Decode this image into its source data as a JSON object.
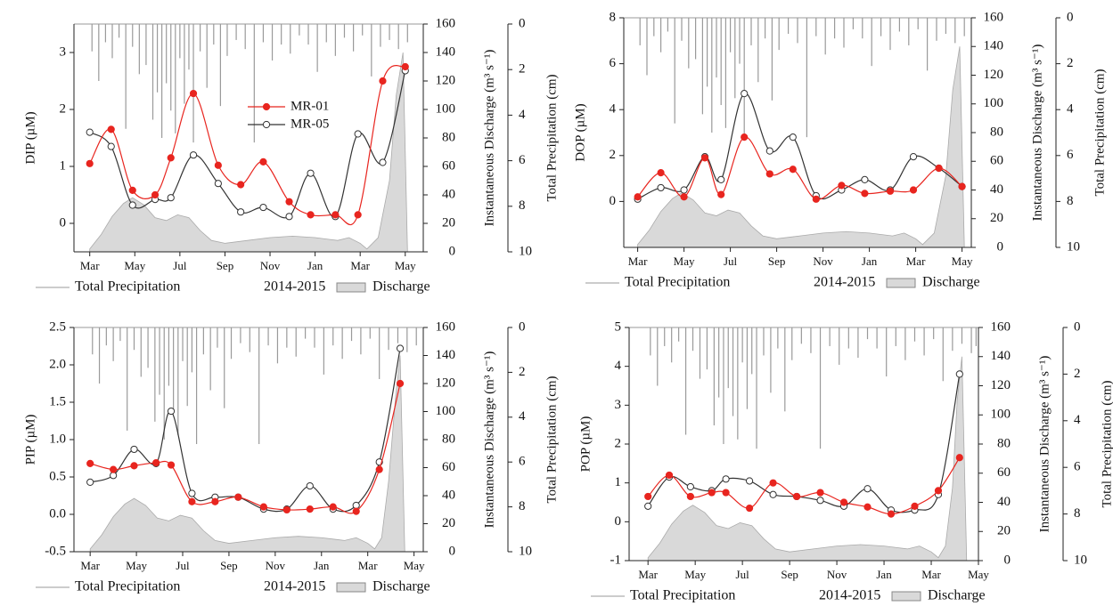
{
  "chart_data": [
    {
      "type": "line",
      "ylabel": "DIP (µM)",
      "y2label": "Instantaneous Discharge (m³ s⁻¹)",
      "y3label": "Total Precipitation (cm)",
      "legend": true,
      "x": [
        0,
        0.95,
        1.9,
        2.9,
        3.6,
        4.6,
        5.7,
        6.7,
        7.7,
        8.85,
        9.8,
        10.9,
        11.9,
        13,
        14
      ],
      "series": [
        {
          "name": "MR-01",
          "color": "#e8251f",
          "values": [
            1.05,
            1.65,
            0.58,
            0.5,
            1.15,
            2.28,
            1.02,
            0.68,
            1.08,
            0.38,
            0.15,
            0.15,
            0.15,
            2.5,
            2.75
          ]
        },
        {
          "name": "MR-05",
          "color": "#333333",
          "values": [
            1.6,
            1.35,
            0.32,
            0.42,
            0.45,
            1.2,
            0.7,
            0.2,
            0.28,
            0.12,
            0.88,
            0.12,
            1.57,
            1.07,
            2.68
          ]
        }
      ],
      "xlim": [
        -0.7,
        14.8
      ],
      "xticks": [
        {
          "value": 0,
          "label": "Mar"
        },
        {
          "value": 2,
          "label": "May"
        },
        {
          "value": 4,
          "label": "Jul"
        },
        {
          "value": 6,
          "label": "Sep"
        },
        {
          "value": 8,
          "label": "Nov"
        },
        {
          "value": 10,
          "label": "Jan"
        },
        {
          "value": 12,
          "label": "Mar"
        },
        {
          "value": 14,
          "label": "May"
        }
      ],
      "ylim": [
        -0.5,
        3.5
      ],
      "yticks": [
        0,
        1,
        2,
        3
      ],
      "y2lim": [
        0,
        160
      ],
      "y2ticks": [
        0,
        20,
        40,
        60,
        80,
        100,
        120,
        140,
        160
      ],
      "y3lim": [
        10,
        0
      ],
      "y3ticks": [
        0,
        2,
        4,
        6,
        8,
        10
      ],
      "discharge": {
        "name": "Discharge",
        "color": "#d9d9d9",
        "x": [
          0,
          0.5,
          1,
          1.5,
          1.9,
          2.4,
          2.9,
          3.4,
          3.9,
          4.4,
          4.9,
          5.4,
          6,
          7,
          8,
          9,
          10,
          10.5,
          11,
          11.5,
          12,
          12.3,
          12.8,
          13.3,
          13.6,
          13.9,
          14.1
        ],
        "values": [
          2,
          12,
          25,
          34,
          38,
          33,
          24,
          22,
          26,
          24,
          15,
          8,
          6,
          8,
          10,
          11,
          10,
          9,
          8,
          10,
          6,
          2,
          10,
          50,
          110,
          140,
          0
        ]
      },
      "precipitation": {
        "name": "Total Precipitation",
        "period": "2014-2015",
        "color": "#9a9a9a",
        "x": [
          0.1,
          0.4,
          0.7,
          1.0,
          1.3,
          1.6,
          1.9,
          2.2,
          2.5,
          2.8,
          3.0,
          3.2,
          3.4,
          3.6,
          3.8,
          4.0,
          4.2,
          4.4,
          4.6,
          4.9,
          5.2,
          5.5,
          5.8,
          6.1,
          6.5,
          6.9,
          7.3,
          7.7,
          8.1,
          8.5,
          8.9,
          9.3,
          9.7,
          10.1,
          10.5,
          10.9,
          11.3,
          11.7,
          12.1,
          12.5,
          12.9,
          13.3,
          13.7,
          14.1
        ],
        "values": [
          1.2,
          2.5,
          0.8,
          1.5,
          0.6,
          4.6,
          1.0,
          2.2,
          1.8,
          4.2,
          3.0,
          5.0,
          2.6,
          3.8,
          4.8,
          1.5,
          3.5,
          2.0,
          5.2,
          1.2,
          2.8,
          0.9,
          3.6,
          1.4,
          0.7,
          1.1,
          5.2,
          0.8,
          1.6,
          0.9,
          1.3,
          0.5,
          0.9,
          2.1,
          0.8,
          1.4,
          0.6,
          1.2,
          0.5,
          2.3,
          1.0,
          0.7,
          1.1,
          0.8
        ]
      }
    },
    {
      "type": "line",
      "ylabel": "DOP (µM)",
      "y2label": "Instantaneous Discharge (m³ s⁻¹)",
      "y3label": "Total Precipitation (cm)",
      "legend": false,
      "x": [
        0,
        1,
        2,
        2.9,
        3.6,
        4.6,
        5.7,
        6.7,
        7.7,
        8.8,
        9.8,
        10.9,
        11.9,
        13,
        14
      ],
      "series": [
        {
          "name": "MR-01",
          "color": "#e8251f",
          "values": [
            0.2,
            1.25,
            0.2,
            1.9,
            0.3,
            2.8,
            1.2,
            1.4,
            0.1,
            0.7,
            0.35,
            0.45,
            0.5,
            1.45,
            0.65
          ]
        },
        {
          "name": "MR-05",
          "color": "#333333",
          "values": [
            0.1,
            0.6,
            0.5,
            1.95,
            0.95,
            4.7,
            2.2,
            2.8,
            0.25,
            0.5,
            0.95,
            0.5,
            1.95,
            1.45,
            0.65
          ]
        }
      ],
      "xlim": [
        -0.6,
        14.4
      ],
      "xticks": [
        {
          "value": 0,
          "label": "Mar"
        },
        {
          "value": 2,
          "label": "May"
        },
        {
          "value": 4,
          "label": "Jul"
        },
        {
          "value": 6,
          "label": "Sep"
        },
        {
          "value": 8,
          "label": "Nov"
        },
        {
          "value": 10,
          "label": "Jan"
        },
        {
          "value": 12,
          "label": "Mar"
        },
        {
          "value": 14,
          "label": "May"
        }
      ],
      "ylim": [
        -2,
        8
      ],
      "yticks": [
        0,
        2,
        4,
        6,
        8
      ],
      "y2lim": [
        0,
        160
      ],
      "y2ticks": [
        0,
        20,
        40,
        60,
        80,
        100,
        120,
        140,
        160
      ],
      "y3lim": [
        10,
        0
      ],
      "y3ticks": [
        0,
        2,
        4,
        6,
        8,
        10
      ],
      "discharge": {
        "name": "Discharge",
        "color": "#d9d9d9",
        "x": [
          0,
          0.5,
          1,
          1.5,
          1.9,
          2.4,
          2.9,
          3.4,
          3.9,
          4.4,
          4.9,
          5.4,
          6,
          7,
          8,
          9,
          10,
          10.5,
          11,
          11.5,
          12,
          12.3,
          12.8,
          13.3,
          13.6,
          13.9,
          14.1
        ],
        "values": [
          2,
          12,
          25,
          34,
          38,
          33,
          24,
          22,
          26,
          24,
          15,
          8,
          6,
          8,
          10,
          11,
          10,
          9,
          8,
          10,
          6,
          2,
          10,
          50,
          110,
          140,
          0
        ]
      },
      "precipitation": {
        "name": "Total Precipitation",
        "period": "2014-2015",
        "color": "#9a9a9a",
        "x": [
          0.1,
          0.4,
          0.7,
          1.0,
          1.3,
          1.6,
          1.9,
          2.2,
          2.5,
          2.8,
          3.0,
          3.2,
          3.4,
          3.6,
          3.8,
          4.0,
          4.2,
          4.4,
          4.6,
          4.9,
          5.2,
          5.5,
          5.8,
          6.1,
          6.5,
          6.9,
          7.3,
          7.7,
          8.1,
          8.5,
          8.9,
          9.3,
          9.7,
          10.1,
          10.5,
          10.9,
          11.3,
          11.7,
          12.1,
          12.5,
          12.9,
          13.3,
          13.7,
          14.1
        ],
        "values": [
          1.2,
          2.5,
          0.8,
          1.5,
          0.6,
          4.6,
          1.0,
          2.2,
          1.8,
          4.2,
          3.0,
          5.0,
          2.6,
          3.8,
          4.8,
          1.5,
          3.5,
          2.0,
          5.2,
          1.2,
          2.8,
          0.9,
          3.6,
          1.4,
          0.7,
          1.1,
          5.2,
          0.8,
          1.6,
          0.9,
          1.3,
          0.5,
          0.9,
          2.1,
          0.8,
          1.4,
          0.6,
          1.2,
          0.5,
          2.3,
          1.0,
          0.7,
          1.1,
          0.8
        ]
      }
    },
    {
      "type": "line",
      "ylabel": "PIP (µM)",
      "y2label": "Instantaneous Discharge (m³ s⁻¹)",
      "y3label": "Total Precipitation (cm)",
      "legend": false,
      "x": [
        0,
        1,
        1.9,
        2.85,
        3.5,
        4.4,
        5.4,
        6.4,
        7.5,
        8.5,
        9.5,
        10.5,
        11.5,
        12.5,
        13.4
      ],
      "series": [
        {
          "name": "MR-01",
          "color": "#e8251f",
          "values": [
            0.68,
            0.6,
            0.65,
            0.69,
            0.66,
            0.17,
            0.17,
            0.23,
            0.1,
            0.06,
            0.07,
            0.1,
            0.04,
            0.6,
            1.75
          ]
        },
        {
          "name": "MR-05",
          "color": "#333333",
          "values": [
            0.43,
            0.52,
            0.87,
            0.68,
            1.38,
            0.28,
            0.23,
            0.23,
            0.07,
            0.07,
            0.38,
            0.07,
            0.12,
            0.7,
            2.22
          ]
        }
      ],
      "xlim": [
        -0.7,
        14.4
      ],
      "xticks": [
        {
          "value": 0,
          "label": "Mar"
        },
        {
          "value": 2,
          "label": "May"
        },
        {
          "value": 4,
          "label": "Jul"
        },
        {
          "value": 6,
          "label": "Sep"
        },
        {
          "value": 8,
          "label": "Nov"
        },
        {
          "value": 10,
          "label": "Jan"
        },
        {
          "value": 12,
          "label": "Mar"
        },
        {
          "value": 14,
          "label": "May"
        }
      ],
      "ylim": [
        -0.5,
        2.5
      ],
      "yticks": [
        -0.5,
        {
          "value": 0,
          "label": "0.0"
        },
        0.5,
        {
          "value": 1,
          "label": "1.0"
        },
        1.5,
        {
          "value": 2,
          "label": "2.0"
        },
        2.5
      ],
      "y2lim": [
        0,
        160
      ],
      "y2ticks": [
        0,
        20,
        40,
        60,
        80,
        100,
        120,
        140,
        160
      ],
      "y3lim": [
        10,
        0
      ],
      "y3ticks": [
        0,
        2,
        4,
        6,
        8,
        10
      ],
      "discharge": {
        "name": "Discharge",
        "color": "#d9d9d9",
        "x": [
          0,
          0.5,
          1,
          1.5,
          1.9,
          2.4,
          2.9,
          3.4,
          3.9,
          4.4,
          4.9,
          5.4,
          6,
          7,
          8,
          9,
          10,
          10.5,
          11,
          11.5,
          12,
          12.3,
          12.6,
          12.9,
          13.2,
          13.4,
          13.6
        ],
        "values": [
          2,
          12,
          25,
          34,
          38,
          33,
          24,
          22,
          26,
          24,
          15,
          8,
          6,
          8,
          10,
          11,
          10,
          9,
          8,
          10,
          6,
          2,
          10,
          50,
          110,
          140,
          0
        ]
      },
      "precipitation": {
        "name": "Total Precipitation",
        "period": "2014-2015",
        "color": "#9a9a9a",
        "x": [
          0.1,
          0.4,
          0.7,
          1.0,
          1.3,
          1.6,
          1.9,
          2.2,
          2.5,
          2.8,
          3.0,
          3.2,
          3.4,
          3.6,
          3.8,
          4.0,
          4.2,
          4.4,
          4.6,
          4.9,
          5.2,
          5.5,
          5.8,
          6.1,
          6.5,
          6.9,
          7.3,
          7.7,
          8.1,
          8.5,
          8.9,
          9.3,
          9.7,
          10.1,
          10.5,
          10.9,
          11.3,
          11.7,
          12.1,
          12.5,
          12.9,
          13.3,
          13.7,
          14.1
        ],
        "values": [
          1.2,
          2.5,
          0.8,
          1.5,
          0.6,
          4.6,
          1.0,
          2.2,
          1.8,
          4.2,
          3.0,
          5.0,
          2.6,
          3.8,
          4.8,
          1.5,
          3.5,
          2.0,
          5.2,
          1.2,
          2.8,
          0.9,
          3.6,
          1.4,
          0.7,
          1.1,
          5.2,
          0.8,
          1.6,
          0.9,
          1.3,
          0.5,
          0.9,
          2.1,
          0.8,
          1.4,
          0.6,
          1.2,
          0.5,
          2.3,
          1.0,
          0.7,
          1.1,
          0.8
        ]
      }
    },
    {
      "type": "line",
      "ylabel": "POP (µM)",
      "y2label": "Instantaneous Discharge (m³ s⁻¹)",
      "y3label": "Total Precipitation (cm)",
      "legend": false,
      "x": [
        0,
        0.9,
        1.8,
        2.7,
        3.3,
        4.3,
        5.3,
        6.3,
        7.3,
        8.3,
        9.3,
        10.3,
        11.3,
        12.3,
        13.2
      ],
      "series": [
        {
          "name": "MR-01",
          "color": "#e8251f",
          "values": [
            0.65,
            1.2,
            0.65,
            0.75,
            0.75,
            0.35,
            1.0,
            0.65,
            0.75,
            0.5,
            0.38,
            0.2,
            0.4,
            0.8,
            1.65
          ]
        },
        {
          "name": "MR-05",
          "color": "#333333",
          "values": [
            0.4,
            1.15,
            0.9,
            0.8,
            1.1,
            1.05,
            0.7,
            0.65,
            0.55,
            0.4,
            0.85,
            0.3,
            0.3,
            0.7,
            3.8
          ]
        }
      ],
      "xlim": [
        -0.8,
        14.0
      ],
      "xticks": [
        {
          "value": 0,
          "label": "Mar"
        },
        {
          "value": 2,
          "label": "May"
        },
        {
          "value": 4,
          "label": "Jul"
        },
        {
          "value": 6,
          "label": "Sep"
        },
        {
          "value": 8,
          "label": "Nov"
        },
        {
          "value": 10,
          "label": "Jan"
        },
        {
          "value": 12,
          "label": "Mar"
        },
        {
          "value": 14,
          "label": "May"
        }
      ],
      "ylim": [
        -1,
        5
      ],
      "yticks": [
        -1,
        0,
        1,
        2,
        3,
        4,
        5
      ],
      "y2lim": [
        0,
        160
      ],
      "y2ticks": [
        0,
        20,
        40,
        60,
        80,
        100,
        120,
        140,
        160
      ],
      "y3lim": [
        10,
        0
      ],
      "y3ticks": [
        0,
        2,
        4,
        6,
        8,
        10
      ],
      "discharge": {
        "name": "Discharge",
        "color": "#d9d9d9",
        "x": [
          0,
          0.5,
          1,
          1.5,
          1.9,
          2.4,
          2.9,
          3.4,
          3.9,
          4.4,
          4.9,
          5.4,
          6,
          7,
          8,
          9,
          10,
          10.5,
          11,
          11.5,
          12,
          12.3,
          12.6,
          12.9,
          13.1,
          13.3,
          13.5
        ],
        "values": [
          2,
          12,
          25,
          34,
          38,
          33,
          24,
          22,
          26,
          24,
          15,
          8,
          6,
          8,
          10,
          11,
          10,
          9,
          8,
          10,
          6,
          2,
          10,
          50,
          110,
          140,
          0
        ]
      },
      "precipitation": {
        "name": "Total Precipitation",
        "period": "2014-2015",
        "color": "#9a9a9a",
        "x": [
          0.1,
          0.4,
          0.7,
          1.0,
          1.3,
          1.6,
          1.9,
          2.2,
          2.5,
          2.8,
          3.0,
          3.2,
          3.4,
          3.6,
          3.8,
          4.0,
          4.2,
          4.4,
          4.6,
          4.9,
          5.2,
          5.5,
          5.8,
          6.1,
          6.5,
          6.9,
          7.3,
          7.7,
          8.1,
          8.5,
          8.9,
          9.3,
          9.7,
          10.1,
          10.5,
          10.9,
          11.3,
          11.7,
          12.1,
          12.5,
          12.9,
          13.3,
          13.7,
          13.9
        ],
        "values": [
          1.2,
          2.5,
          0.8,
          1.5,
          0.6,
          4.6,
          1.0,
          2.2,
          1.8,
          4.2,
          3.0,
          5.0,
          2.6,
          3.8,
          4.8,
          1.5,
          3.5,
          2.0,
          5.2,
          1.2,
          2.8,
          0.9,
          3.6,
          1.4,
          0.7,
          1.1,
          5.2,
          0.8,
          1.6,
          0.9,
          1.3,
          0.5,
          0.9,
          2.1,
          0.8,
          1.4,
          0.6,
          1.2,
          0.5,
          2.3,
          1.0,
          0.7,
          1.1,
          0.8
        ]
      }
    }
  ]
}
